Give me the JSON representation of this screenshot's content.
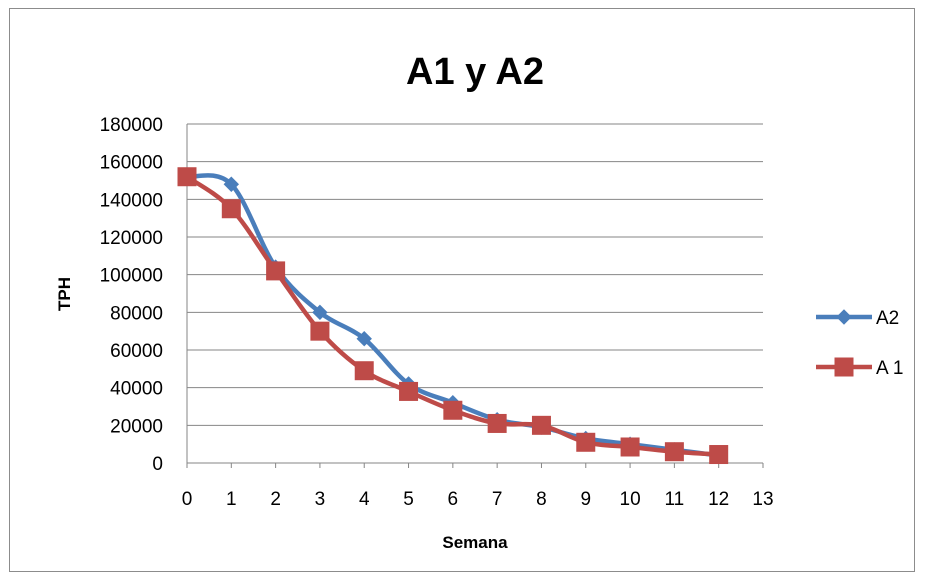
{
  "chart_data": {
    "type": "line",
    "title": "A1 y A2",
    "xlabel": "Semana",
    "ylabel": "TPH",
    "xlim": [
      0,
      13
    ],
    "ylim": [
      0,
      180000
    ],
    "x_ticks": [
      "0",
      "1",
      "2",
      "3",
      "4",
      "5",
      "6",
      "7",
      "8",
      "9",
      "10",
      "11",
      "12",
      "13"
    ],
    "y_ticks": [
      "0",
      "20000",
      "40000",
      "60000",
      "80000",
      "100000",
      "120000",
      "140000",
      "160000",
      "180000"
    ],
    "grid": "horizontal",
    "smooth": true,
    "legend_position": "right",
    "series": [
      {
        "name": "A2",
        "color": "#4a7ebb",
        "marker": "diamond",
        "x": [
          0,
          1,
          2,
          3,
          4,
          5,
          6,
          7,
          8,
          9,
          10,
          11,
          12
        ],
        "values": [
          152000,
          148000,
          104000,
          80000,
          66000,
          42000,
          32000,
          23000,
          19000,
          13000,
          10000,
          7000,
          4000
        ]
      },
      {
        "name": "A 1",
        "color": "#be4b48",
        "marker": "square",
        "x": [
          0,
          1,
          2,
          3,
          4,
          5,
          6,
          7,
          8,
          9,
          10,
          11,
          12
        ],
        "values": [
          152000,
          135000,
          102000,
          70000,
          49000,
          38000,
          28000,
          21000,
          20000,
          11000,
          8500,
          6000,
          4500
        ]
      }
    ]
  }
}
